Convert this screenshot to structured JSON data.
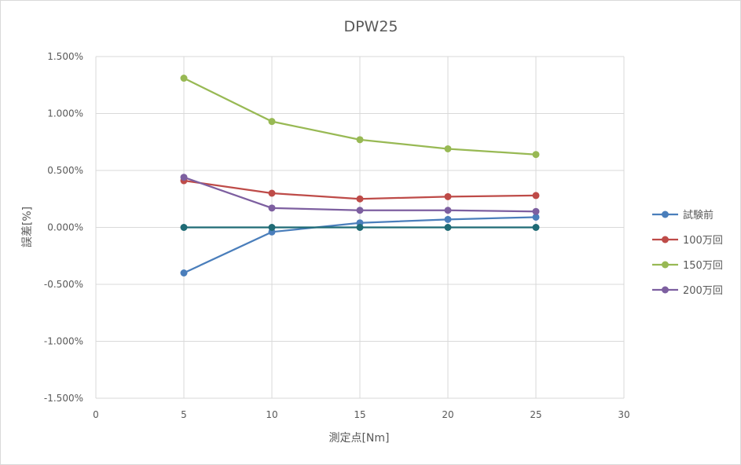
{
  "chart_data": {
    "type": "scatter",
    "title": "DPW25",
    "xlabel": "測定点[Nm]",
    "ylabel": "誤差[%]",
    "xlim": [
      0,
      30
    ],
    "ylim": [
      -0.015,
      0.015
    ],
    "xticks": [
      0,
      5,
      10,
      15,
      20,
      25,
      30
    ],
    "yticks": [
      -0.015,
      -0.01,
      -0.005,
      0,
      0.005,
      0.01,
      0.015
    ],
    "ytick_labels": [
      "-1.500%",
      "-1.000%",
      "-0.500%",
      "0.000%",
      "0.500%",
      "1.000%",
      "1.500%"
    ],
    "grid": true,
    "legend_position": "right",
    "series": [
      {
        "name": "試験前",
        "color": "#4a7ebb",
        "x": [
          5,
          10,
          15,
          20,
          25
        ],
        "y": [
          -0.004,
          -0.0004,
          0.0004,
          0.0007,
          0.0009
        ]
      },
      {
        "name": "100万回",
        "color": "#be4b48",
        "x": [
          5,
          10,
          15,
          20,
          25
        ],
        "y": [
          0.0041,
          0.003,
          0.0025,
          0.0027,
          0.0028
        ]
      },
      {
        "name": "150万回",
        "color": "#98b954",
        "x": [
          5,
          10,
          15,
          20,
          25
        ],
        "y": [
          0.0131,
          0.0093,
          0.0077,
          0.0069,
          0.0064
        ]
      },
      {
        "name": "200万回",
        "color": "#7d5fa0",
        "x": [
          5,
          10,
          15,
          20,
          25
        ],
        "y": [
          0.0044,
          0.0017,
          0.0015,
          0.0015,
          0.0014
        ]
      }
    ],
    "reference_line": {
      "color": "#1f6b75",
      "x": [
        5,
        10,
        15,
        20,
        25
      ],
      "y": [
        0,
        0,
        0,
        0,
        0
      ]
    }
  }
}
